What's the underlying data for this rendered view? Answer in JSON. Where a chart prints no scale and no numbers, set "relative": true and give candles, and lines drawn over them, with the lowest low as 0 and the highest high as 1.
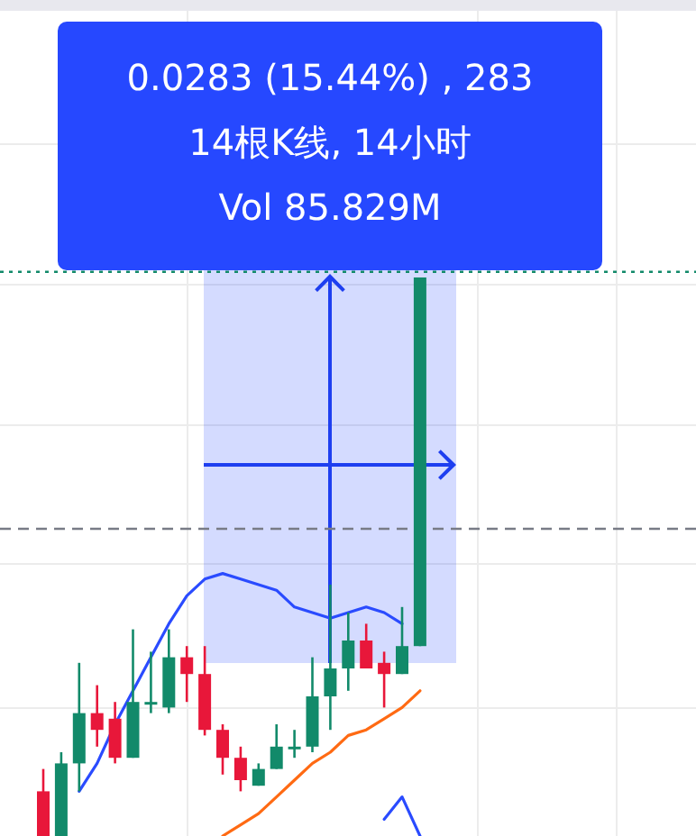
{
  "chart_data": {
    "type": "candlestick",
    "relative": true,
    "categories": [
      null,
      null,
      null,
      null,
      null,
      null,
      null,
      null,
      null,
      null,
      null,
      null,
      null,
      null,
      null,
      null,
      null,
      null,
      null,
      null,
      null,
      null
    ],
    "ohlc": [
      [
        0.08,
        0.12,
        0,
        0
      ],
      [
        0,
        0.15,
        0,
        0.13
      ],
      [
        0.13,
        0.31,
        0.08,
        0.22
      ],
      [
        0.22,
        0.27,
        0.16,
        0.19
      ],
      [
        0.21,
        0.24,
        0.13,
        0.14
      ],
      [
        0.14,
        0.37,
        0.14,
        0.24
      ],
      [
        0.24,
        0.33,
        0.22,
        0.24
      ],
      [
        0.23,
        0.37,
        0.22,
        0.32
      ],
      [
        0.32,
        0.34,
        0.24,
        0.29
      ],
      [
        0.29,
        0.34,
        0.18,
        0.19
      ],
      [
        0.19,
        0.2,
        0.11,
        0.14
      ],
      [
        0.14,
        0.16,
        0.08,
        0.1
      ],
      [
        0.09,
        0.13,
        0.09,
        0.12
      ],
      [
        0.12,
        0.2,
        0.12,
        0.16
      ],
      [
        0.16,
        0.19,
        0.14,
        0.16
      ],
      [
        0.16,
        0.32,
        0.15,
        0.25
      ],
      [
        0.25,
        0.45,
        0.19,
        0.3
      ],
      [
        0.3,
        0.4,
        0.26,
        0.35
      ],
      [
        0.35,
        0.38,
        0.3,
        0.3
      ],
      [
        0.31,
        0.33,
        0.23,
        0.29
      ],
      [
        0.29,
        0.41,
        0.29,
        0.34
      ],
      [
        0.34,
        1,
        0.34,
        1
      ]
    ],
    "series": [
      {
        "type": "line",
        "color": "#2a4bff",
        "values": [
          null,
          null,
          0.08,
          0.13,
          0.2,
          0.26,
          0.32,
          0.38,
          0.43,
          0.46,
          0.47,
          0.46,
          0.45,
          0.44,
          0.41,
          0.4,
          0.39,
          0.4,
          0.41,
          0.4,
          0.38,
          null
        ]
      },
      {
        "type": "line",
        "color": "#ff6a13",
        "values": [
          null,
          null,
          null,
          null,
          null,
          null,
          null,
          null,
          null,
          null,
          0,
          0.02,
          0.04,
          0.07,
          0.1,
          0.13,
          0.15,
          0.18,
          0.19,
          0.21,
          0.23,
          0.26
        ]
      },
      {
        "type": "line",
        "color": "#2a4bff",
        "values": [
          null,
          null,
          null,
          null,
          null,
          null,
          null,
          null,
          null,
          null,
          null,
          null,
          null,
          null,
          null,
          null,
          null,
          null,
          null,
          0.03,
          0.07,
          0
        ]
      }
    ],
    "ref_lines": [
      {
        "axis": "y",
        "value": 1.01,
        "color": "#128a6a",
        "line_style": "dotted"
      },
      {
        "axis": "y",
        "value": 0.55,
        "color": "#787b86",
        "line_style": "dashed"
      }
    ],
    "annotations": [
      "0.0283 (15.44%) , 283",
      "14根K线, 14小时",
      "Vol 85.829M"
    ],
    "grid": true
  }
}
